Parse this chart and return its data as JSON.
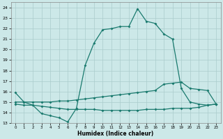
{
  "xlabel": "Humidex (Indice chaleur)",
  "x_values": [
    0,
    1,
    2,
    3,
    4,
    5,
    6,
    7,
    8,
    9,
    10,
    11,
    12,
    13,
    14,
    15,
    16,
    17,
    18,
    19,
    20,
    21,
    22,
    23
  ],
  "curve_main": [
    15.9,
    15.0,
    14.7,
    13.9,
    13.7,
    13.5,
    13.1,
    14.4,
    18.5,
    20.6,
    21.9,
    22.0,
    22.2,
    22.2,
    23.9,
    22.7,
    22.5,
    21.5,
    21.0,
    16.3,
    15.0,
    14.8,
    14.7,
    14.8
  ],
  "curve_upper_flat": [
    15.0,
    15.0,
    15.0,
    15.0,
    15.0,
    15.1,
    15.1,
    15.2,
    15.3,
    15.4,
    15.5,
    15.6,
    15.7,
    15.8,
    15.9,
    16.0,
    16.1,
    16.7,
    16.8,
    16.9,
    16.3,
    16.2,
    16.1,
    14.8
  ],
  "curve_lower_flat": [
    14.8,
    14.7,
    14.7,
    14.6,
    14.5,
    14.4,
    14.3,
    14.3,
    14.3,
    14.3,
    14.2,
    14.2,
    14.2,
    14.2,
    14.2,
    14.3,
    14.3,
    14.3,
    14.4,
    14.4,
    14.4,
    14.5,
    14.7,
    14.8
  ],
  "line_color": "#1a7a6e",
  "bg_color": "#cce8e8",
  "grid_color": "#aacccc",
  "ylim": [
    13,
    24.5
  ],
  "xlim": [
    -0.5,
    23.5
  ],
  "yticks": [
    13,
    14,
    15,
    16,
    17,
    18,
    19,
    20,
    21,
    22,
    23,
    24
  ],
  "xticks": [
    0,
    1,
    2,
    3,
    4,
    5,
    6,
    7,
    8,
    9,
    10,
    11,
    12,
    13,
    14,
    15,
    16,
    17,
    18,
    19,
    20,
    21,
    22,
    23
  ]
}
